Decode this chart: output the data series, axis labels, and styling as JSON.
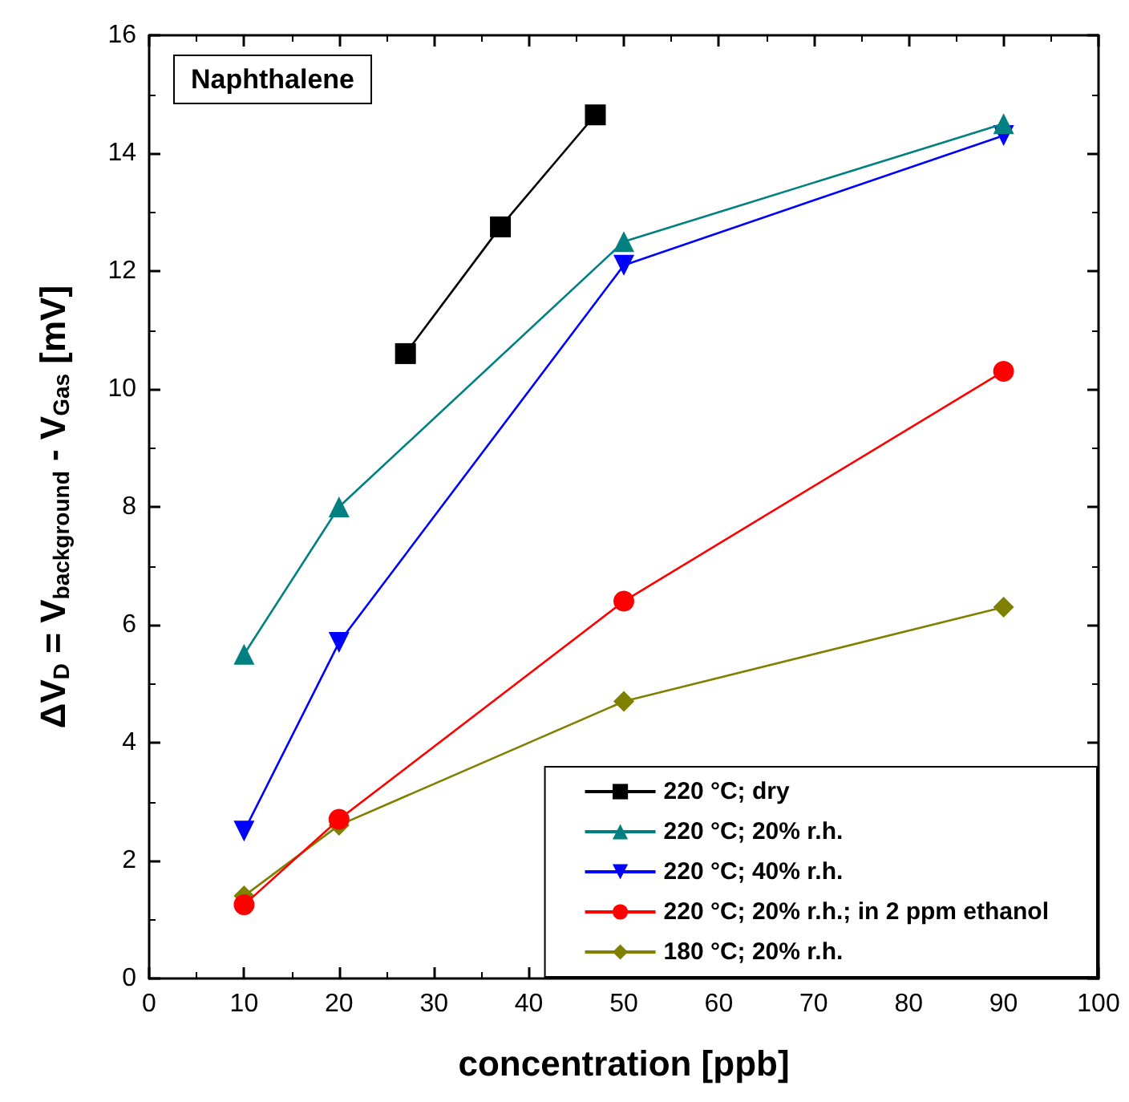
{
  "chart_data": {
    "type": "line",
    "xlabel": "concentration [ppb]",
    "ylabel": "ΔV$_{D}$ = V$_{background}$ - V$_{Gas}$ [mV]",
    "annotations": [
      "Naphthalene"
    ],
    "xlim": [
      0,
      100
    ],
    "xticks": [
      0,
      10,
      20,
      30,
      40,
      50,
      60,
      70,
      80,
      90,
      100
    ],
    "ylim": [
      0,
      16
    ],
    "yticks": [
      0,
      2,
      4,
      6,
      8,
      10,
      12,
      14,
      16
    ],
    "grid": false,
    "legend": "bottom right",
    "line_style": "solid",
    "series": [
      {
        "name": "220 °C; dry",
        "color": "#000000",
        "marker": "square",
        "x": [
          27,
          37,
          47
        ],
        "values": [
          10.6,
          12.75,
          14.65
        ]
      },
      {
        "name": "220 °C; 20% r.h.",
        "color": "#008080",
        "marker": "triangle",
        "x": [
          10,
          20,
          50,
          90
        ],
        "values": [
          5.5,
          8.0,
          12.5,
          14.5
        ]
      },
      {
        "name": "220 °C; 40% r.h.",
        "color": "#0000ff",
        "marker": "triangle-down",
        "x": [
          10,
          20,
          50,
          90
        ],
        "values": [
          2.5,
          5.7,
          12.1,
          14.3
        ]
      },
      {
        "name": "220 °C; 20% r.h.; in 2 ppm ethanol",
        "color": "#ff0000",
        "marker": "circle",
        "x": [
          10,
          20,
          50,
          90
        ],
        "values": [
          1.25,
          2.7,
          6.4,
          10.3
        ]
      },
      {
        "name": "180 °C; 20% r.h.",
        "color": "#808000",
        "marker": "diamond",
        "x": [
          10,
          20,
          50,
          90
        ],
        "values": [
          1.4,
          2.6,
          4.7,
          6.3
        ]
      }
    ]
  }
}
